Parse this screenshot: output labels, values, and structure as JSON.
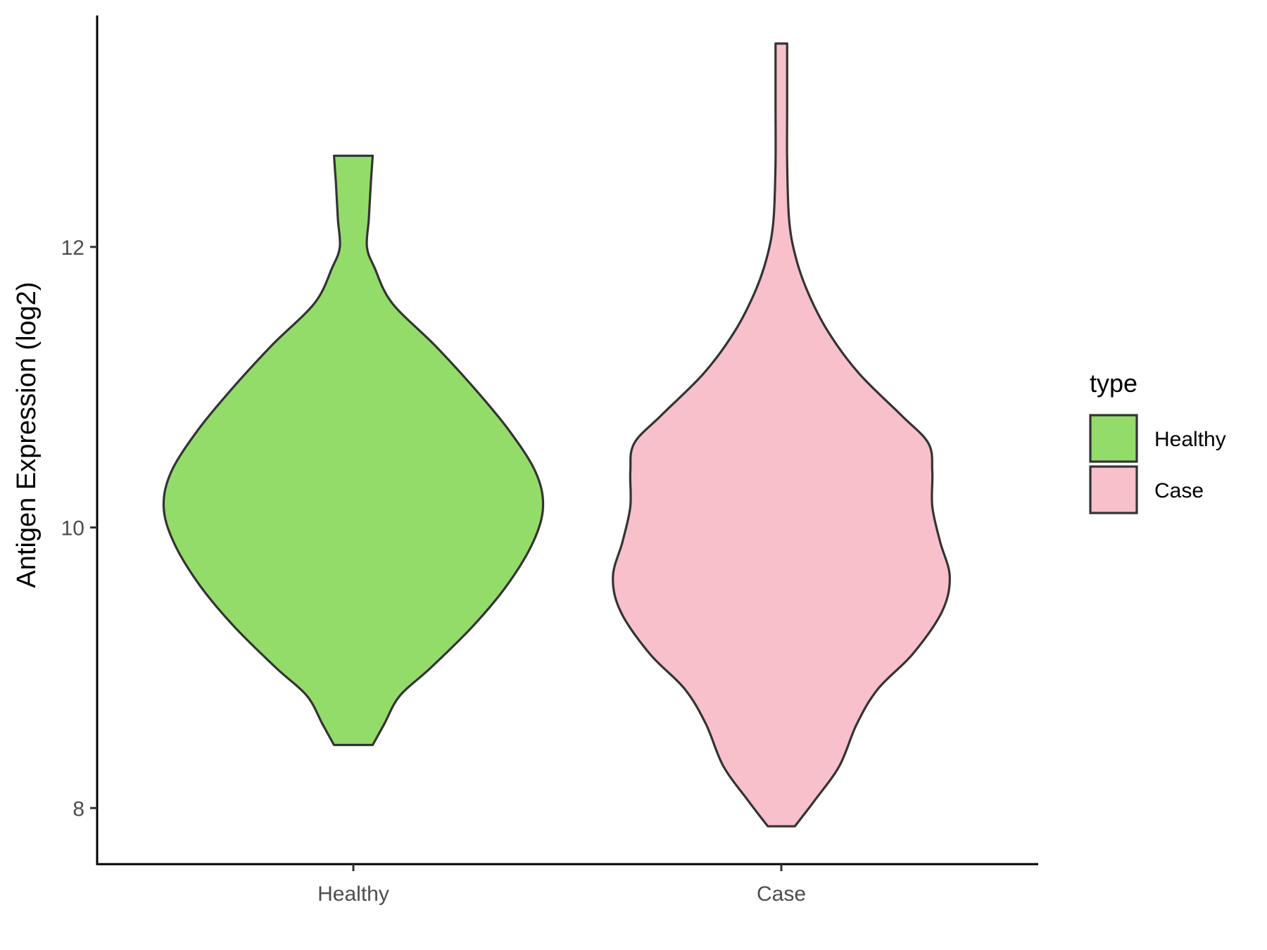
{
  "chart_data": {
    "type": "violin",
    "title": "",
    "xlabel": "",
    "ylabel": "Antigen Expression (log2)",
    "ylim": [
      7.6,
      13.65
    ],
    "y_ticks": [
      8,
      10,
      12
    ],
    "y_tick_labels": [
      "8",
      "10",
      "12"
    ],
    "categories": [
      "Healthy",
      "Case"
    ],
    "grid": false,
    "legend": {
      "title": "type",
      "placement": "right",
      "entries": [
        "Healthy",
        "Case"
      ]
    },
    "series": [
      {
        "name": "Healthy",
        "color": "#93dc69",
        "outline_color": "#333333",
        "range": [
          8.45,
          12.65
        ],
        "density": [
          [
            8.45,
            0.1
          ],
          [
            8.6,
            0.16
          ],
          [
            8.8,
            0.24
          ],
          [
            9.0,
            0.4
          ],
          [
            9.3,
            0.62
          ],
          [
            9.6,
            0.8
          ],
          [
            9.9,
            0.93
          ],
          [
            10.15,
            0.98
          ],
          [
            10.4,
            0.94
          ],
          [
            10.7,
            0.8
          ],
          [
            11.0,
            0.62
          ],
          [
            11.3,
            0.42
          ],
          [
            11.6,
            0.2
          ],
          [
            11.85,
            0.11
          ],
          [
            12.0,
            0.07
          ],
          [
            12.2,
            0.08
          ],
          [
            12.45,
            0.09
          ],
          [
            12.65,
            0.1
          ]
        ]
      },
      {
        "name": "Case",
        "color": "#f7c0cb",
        "outline_color": "#333333",
        "range": [
          7.87,
          13.45
        ],
        "density": [
          [
            7.87,
            0.07
          ],
          [
            8.05,
            0.17
          ],
          [
            8.3,
            0.3
          ],
          [
            8.6,
            0.39
          ],
          [
            8.85,
            0.5
          ],
          [
            9.1,
            0.68
          ],
          [
            9.4,
            0.83
          ],
          [
            9.65,
            0.87
          ],
          [
            9.9,
            0.82
          ],
          [
            10.15,
            0.78
          ],
          [
            10.4,
            0.78
          ],
          [
            10.6,
            0.76
          ],
          [
            10.8,
            0.62
          ],
          [
            11.1,
            0.4
          ],
          [
            11.4,
            0.24
          ],
          [
            11.7,
            0.13
          ],
          [
            11.95,
            0.07
          ],
          [
            12.2,
            0.04
          ],
          [
            12.6,
            0.03
          ],
          [
            13.0,
            0.03
          ],
          [
            13.45,
            0.03
          ]
        ]
      }
    ]
  }
}
